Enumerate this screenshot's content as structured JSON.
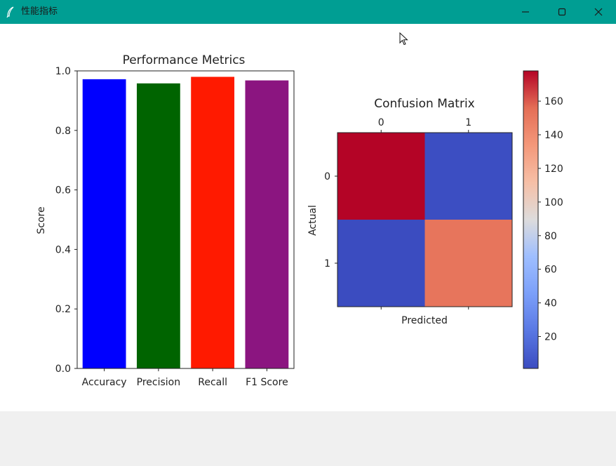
{
  "window": {
    "title": "性能指标",
    "icon": "feather-icon",
    "controls": [
      "minimize-icon",
      "maximize-icon",
      "close-icon"
    ]
  },
  "chart_data": [
    {
      "type": "bar",
      "title": "Performance Metrics",
      "xlabel": "",
      "ylabel": "Score",
      "categories": [
        "Accuracy",
        "Precision",
        "Recall",
        "F1 Score"
      ],
      "values": [
        0.972,
        0.958,
        0.98,
        0.968
      ],
      "colors": [
        "#0000ff",
        "#006400",
        "#ff1a00",
        "#8b1580"
      ],
      "ylim": [
        0,
        1.0
      ],
      "yticks": [
        "0.0",
        "0.2",
        "0.4",
        "0.6",
        "0.8",
        "1.0"
      ],
      "grid": false
    },
    {
      "type": "heatmap",
      "title": "Confusion Matrix",
      "xlabel": "Predicted",
      "ylabel": "Actual",
      "x_ticks": [
        "0",
        "1"
      ],
      "y_ticks": [
        "0",
        "1"
      ],
      "matrix": [
        [
          178,
          2
        ],
        [
          1,
          152
        ]
      ],
      "colormap": "coolwarm",
      "colorbar": {
        "range": [
          1,
          178
        ],
        "ticks": [
          "20",
          "40",
          "60",
          "80",
          "100",
          "120",
          "140",
          "160"
        ]
      }
    }
  ]
}
